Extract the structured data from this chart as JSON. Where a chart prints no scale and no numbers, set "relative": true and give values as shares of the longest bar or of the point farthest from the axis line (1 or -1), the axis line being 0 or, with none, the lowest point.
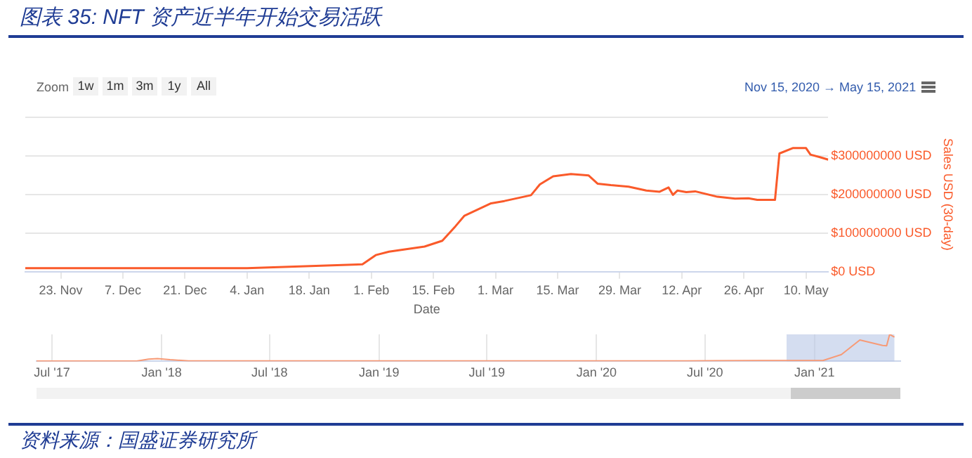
{
  "chart_data": [
    {
      "type": "line",
      "title": "图表 35:  NFT 资产近半年开始交易活跃",
      "xlabel": "Date",
      "ylabel": "Sales USD (30-day)",
      "annotations": [
        "Zoom",
        "1w",
        "1m",
        "3m",
        "1y",
        "All",
        "Nov 15, 2020 → May 15, 2021",
        "资料来源：国盛证券研究所"
      ],
      "x": [
        "2020-11-15",
        "2021-01-04",
        "2021-01-30",
        "2021-02-02",
        "2021-02-05",
        "2021-02-13",
        "2021-02-17",
        "2021-02-20",
        "2021-02-22",
        "2021-02-28",
        "2021-03-03",
        "2021-03-09",
        "2021-03-11",
        "2021-03-14",
        "2021-03-18",
        "2021-03-22",
        "2021-03-24",
        "2021-03-27",
        "2021-03-31",
        "2021-04-04",
        "2021-04-07",
        "2021-04-09",
        "2021-04-10",
        "2021-04-11",
        "2021-04-13",
        "2021-04-15",
        "2021-04-20",
        "2021-04-24",
        "2021-04-27",
        "2021-04-29",
        "2021-05-03",
        "2021-05-04",
        "2021-05-07",
        "2021-05-10",
        "2021-05-11",
        "2021-05-13",
        "2021-05-15"
      ],
      "series": [
        {
          "color": "#fa5a2a",
          "values": [
            9000000,
            9000000,
            19000000,
            43000000,
            52000000,
            65000000,
            80000000,
            118000000,
            145000000,
            177000000,
            183000000,
            198000000,
            226000000,
            247000000,
            253000000,
            249000000,
            228000000,
            224000000,
            220000000,
            210000000,
            207000000,
            218000000,
            199000000,
            210000000,
            206000000,
            208000000,
            194000000,
            189000000,
            190000000,
            186000000,
            186000000,
            306000000,
            320000000,
            320000000,
            303000000,
            297000000,
            290000000
          ]
        }
      ],
      "xlim": [
        "2020-11-15",
        "2021-05-15"
      ],
      "xticks": [
        {
          "value": "2020-11-23",
          "label": "23. Nov"
        },
        {
          "value": "2020-12-07",
          "label": "7. Dec"
        },
        {
          "value": "2020-12-21",
          "label": "21. Dec"
        },
        {
          "value": "2021-01-04",
          "label": "4. Jan"
        },
        {
          "value": "2021-01-18",
          "label": "18. Jan"
        },
        {
          "value": "2021-02-01",
          "label": "1. Feb"
        },
        {
          "value": "2021-02-15",
          "label": "15. Feb"
        },
        {
          "value": "2021-03-01",
          "label": "1. Mar"
        },
        {
          "value": "2021-03-15",
          "label": "15. Mar"
        },
        {
          "value": "2021-03-29",
          "label": "29. Mar"
        },
        {
          "value": "2021-04-12",
          "label": "12. Apr"
        },
        {
          "value": "2021-04-26",
          "label": "26. Apr"
        },
        {
          "value": "2021-05-10",
          "label": "10. May"
        }
      ],
      "ylim": [
        0,
        400000000
      ],
      "yticks": [
        {
          "value": 0,
          "label": "$0 USD"
        },
        {
          "value": 100000000,
          "label": "$100000000 USD"
        },
        {
          "value": 200000000,
          "label": "$200000000 USD"
        },
        {
          "value": 300000000,
          "label": "$300000000 USD"
        },
        {
          "value": 400000000,
          "label": null
        }
      ],
      "grid": "y",
      "marker": "none"
    },
    {
      "type": "line",
      "relative": true,
      "tick_labels": "x",
      "grid": "x",
      "x": [
        "2017-06-05",
        "2017-11-20",
        "2017-12-10",
        "2017-12-25",
        "2018-01-15",
        "2018-02-15",
        "2019-01-01",
        "2020-06-01",
        "2020-10-01",
        "2021-01-15",
        "2021-02-15",
        "2021-03-18",
        "2021-04-25",
        "2021-05-02",
        "2021-05-07",
        "2021-05-15"
      ],
      "series": [
        {
          "color": "#f79a76",
          "values": [
            0.01,
            0.01,
            0.08,
            0.1,
            0.06,
            0.02,
            0.02,
            0.02,
            0.03,
            0.03,
            0.25,
            0.79,
            0.59,
            0.58,
            1,
            0.9
          ]
        }
      ],
      "xlim": [
        "2017-06-05",
        "2021-05-25"
      ],
      "xticks": [
        {
          "value": "2017-07-01",
          "label": "Jul '17"
        },
        {
          "value": "2018-01-01",
          "label": "Jan '18"
        },
        {
          "value": "2018-07-01",
          "label": "Jul '18"
        },
        {
          "value": "2019-01-01",
          "label": "Jan '19"
        },
        {
          "value": "2019-07-01",
          "label": "Jul '19"
        },
        {
          "value": "2020-01-01",
          "label": "Jan '20"
        },
        {
          "value": "2020-07-01",
          "label": "Jul '20"
        },
        {
          "value": "2021-01-01",
          "label": "Jan '21"
        }
      ],
      "bands": [
        {
          "axis": "x",
          "from": "2020-11-15",
          "to": "2021-05-15",
          "color": "#b8c6e6"
        }
      ],
      "marker": "none"
    }
  ]
}
